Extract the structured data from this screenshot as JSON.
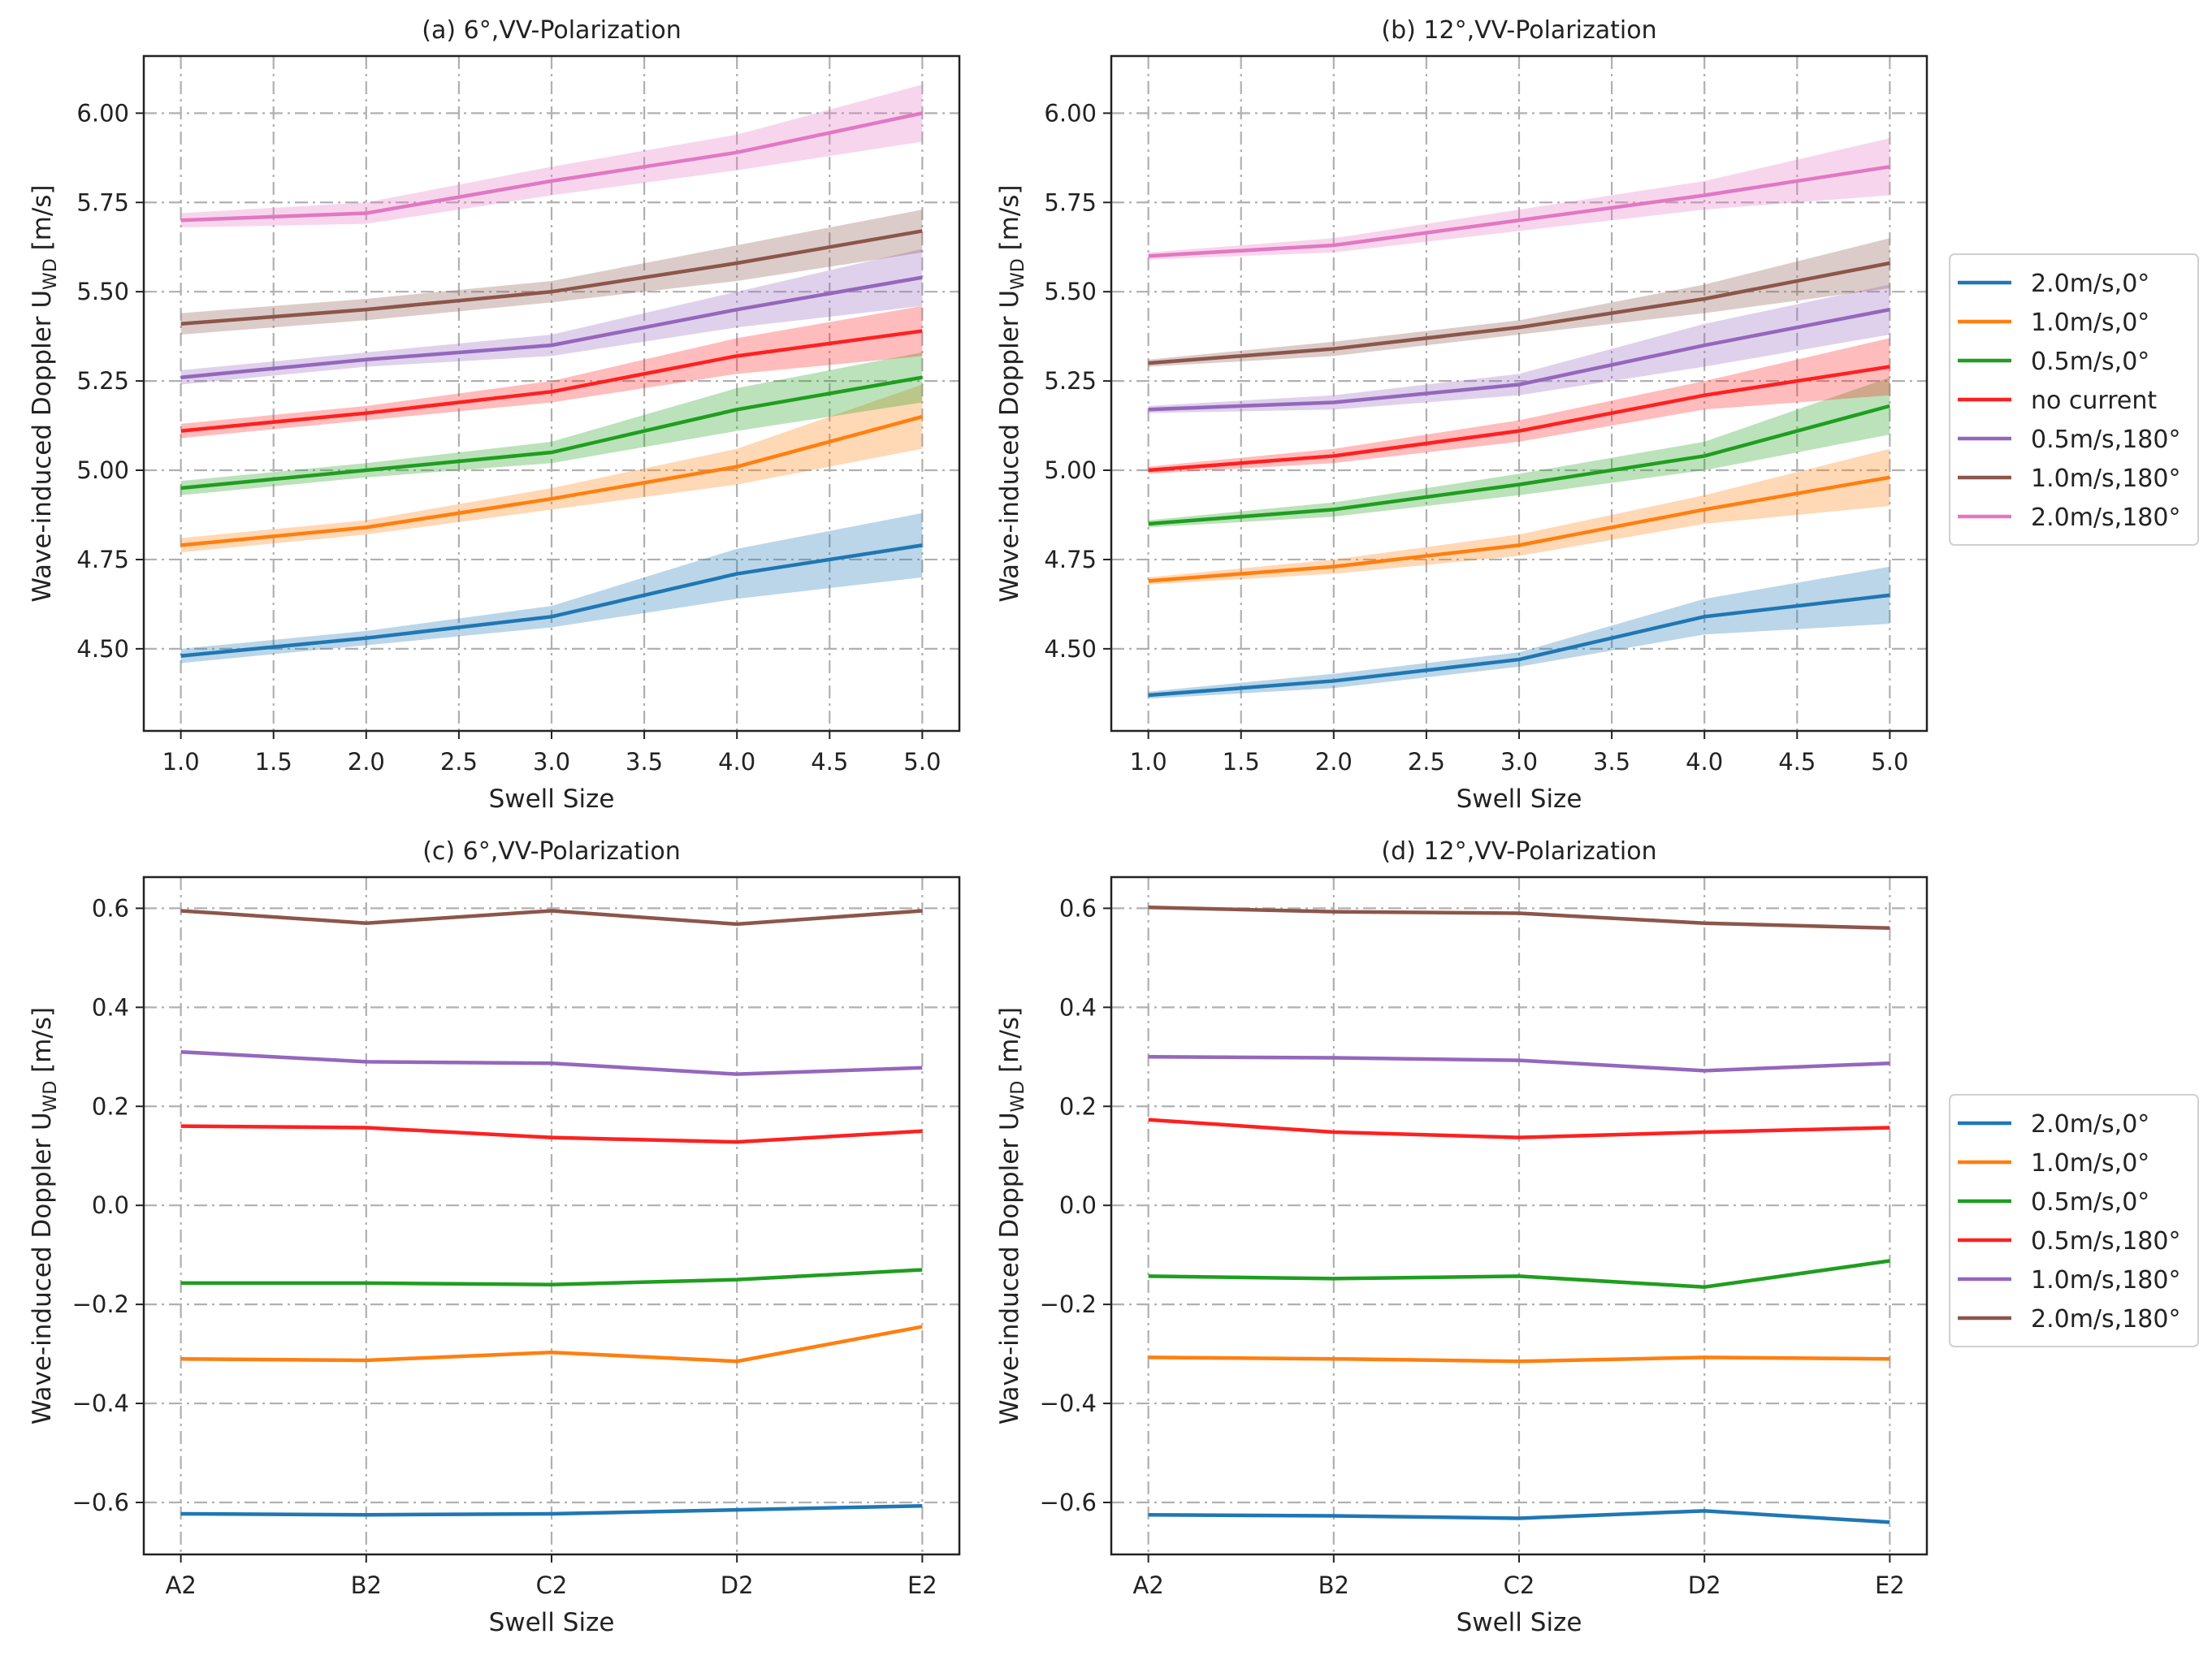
{
  "chart_data": [
    {
      "id": "a",
      "type": "line",
      "title": "(a) 6°,VV-Polarization",
      "xlabel": "Swell Size",
      "ylabel": "Wave-induced Doppler U",
      "ylabel_sub": "WD",
      "ylabel_unit": " [m/s]",
      "x": [
        1.0,
        2.0,
        3.0,
        4.0,
        5.0
      ],
      "xticks": [
        1.0,
        1.5,
        2.0,
        2.5,
        3.0,
        3.5,
        4.0,
        4.5,
        5.0
      ],
      "xtick_labels": [
        "1.0",
        "1.5",
        "2.0",
        "2.5",
        "3.0",
        "3.5",
        "4.0",
        "4.5",
        "5.0"
      ],
      "yticks": [
        4.5,
        4.75,
        5.0,
        5.25,
        5.5,
        5.75,
        6.0
      ],
      "ytick_labels": [
        "4.50",
        "4.75",
        "5.00",
        "5.25",
        "5.50",
        "5.75",
        "6.00"
      ],
      "xlim": [
        0.8,
        5.2
      ],
      "ylim": [
        4.27,
        6.16
      ],
      "grid": true,
      "shaded_band": true,
      "series": [
        {
          "name": "2.0m/s,0°",
          "color": "#1f77b4",
          "values": [
            4.48,
            4.53,
            4.59,
            4.71,
            4.79
          ],
          "band_halfwidth": [
            0.02,
            0.02,
            0.03,
            0.07,
            0.09
          ]
        },
        {
          "name": "1.0m/s,0°",
          "color": "#ff7f0e",
          "values": [
            4.79,
            4.84,
            4.92,
            5.01,
            5.15
          ],
          "band_halfwidth": [
            0.02,
            0.02,
            0.03,
            0.05,
            0.09
          ]
        },
        {
          "name": "0.5m/s,0°",
          "color": "#1f9e1f",
          "values": [
            4.95,
            5.0,
            5.05,
            5.17,
            5.26
          ],
          "band_halfwidth": [
            0.02,
            0.02,
            0.03,
            0.06,
            0.07
          ]
        },
        {
          "name": "no current",
          "color": "#ff2020",
          "values": [
            5.11,
            5.16,
            5.22,
            5.32,
            5.39
          ],
          "band_halfwidth": [
            0.02,
            0.02,
            0.03,
            0.05,
            0.07
          ]
        },
        {
          "name": "0.5m/s,180°",
          "color": "#9467bd",
          "values": [
            5.26,
            5.31,
            5.35,
            5.45,
            5.54
          ],
          "band_halfwidth": [
            0.02,
            0.02,
            0.03,
            0.05,
            0.08
          ]
        },
        {
          "name": "1.0m/s,180°",
          "color": "#8c564b",
          "values": [
            5.41,
            5.45,
            5.5,
            5.58,
            5.67
          ],
          "band_halfwidth": [
            0.03,
            0.03,
            0.03,
            0.05,
            0.06
          ]
        },
        {
          "name": "2.0m/s,180°",
          "color": "#e377c2",
          "values": [
            5.7,
            5.72,
            5.81,
            5.89,
            6.0
          ],
          "band_halfwidth": [
            0.02,
            0.03,
            0.04,
            0.05,
            0.08
          ]
        }
      ]
    },
    {
      "id": "b",
      "type": "line",
      "title": "(b) 12°,VV-Polarization",
      "xlabel": "Swell Size",
      "ylabel": "Wave-induced Doppler U",
      "ylabel_sub": "WD",
      "ylabel_unit": " [m/s]",
      "x": [
        1.0,
        2.0,
        3.0,
        4.0,
        5.0
      ],
      "xticks": [
        1.0,
        1.5,
        2.0,
        2.5,
        3.0,
        3.5,
        4.0,
        4.5,
        5.0
      ],
      "xtick_labels": [
        "1.0",
        "1.5",
        "2.0",
        "2.5",
        "3.0",
        "3.5",
        "4.0",
        "4.5",
        "5.0"
      ],
      "yticks": [
        4.5,
        4.75,
        5.0,
        5.25,
        5.5,
        5.75,
        6.0
      ],
      "ytick_labels": [
        "4.50",
        "4.75",
        "5.00",
        "5.25",
        "5.50",
        "5.75",
        "6.00"
      ],
      "xlim": [
        0.8,
        5.2
      ],
      "ylim": [
        4.27,
        6.16
      ],
      "grid": true,
      "shaded_band": true,
      "legend": {
        "placement": "right-outside",
        "entries": [
          "2.0m/s,0°",
          "1.0m/s,0°",
          "0.5m/s,0°",
          "no current",
          "0.5m/s,180°",
          "1.0m/s,180°",
          "2.0m/s,180°"
        ]
      },
      "series": [
        {
          "name": "2.0m/s,0°",
          "color": "#1f77b4",
          "values": [
            4.37,
            4.41,
            4.47,
            4.59,
            4.65
          ],
          "band_halfwidth": [
            0.01,
            0.02,
            0.02,
            0.05,
            0.08
          ]
        },
        {
          "name": "1.0m/s,0°",
          "color": "#ff7f0e",
          "values": [
            4.69,
            4.73,
            4.79,
            4.89,
            4.98
          ],
          "band_halfwidth": [
            0.01,
            0.02,
            0.03,
            0.04,
            0.08
          ]
        },
        {
          "name": "0.5m/s,0°",
          "color": "#1f9e1f",
          "values": [
            4.85,
            4.89,
            4.96,
            5.04,
            5.18
          ],
          "band_halfwidth": [
            0.01,
            0.02,
            0.03,
            0.04,
            0.08
          ]
        },
        {
          "name": "no current",
          "color": "#ff2020",
          "values": [
            5.0,
            5.04,
            5.11,
            5.21,
            5.29
          ],
          "band_halfwidth": [
            0.01,
            0.02,
            0.03,
            0.04,
            0.08
          ]
        },
        {
          "name": "0.5m/s,180°",
          "color": "#9467bd",
          "values": [
            5.17,
            5.19,
            5.24,
            5.35,
            5.45
          ],
          "band_halfwidth": [
            0.01,
            0.02,
            0.03,
            0.06,
            0.07
          ]
        },
        {
          "name": "1.0m/s,180°",
          "color": "#8c564b",
          "values": [
            5.3,
            5.34,
            5.4,
            5.48,
            5.58
          ],
          "band_halfwidth": [
            0.01,
            0.02,
            0.02,
            0.04,
            0.07
          ]
        },
        {
          "name": "2.0m/s,180°",
          "color": "#e377c2",
          "values": [
            5.6,
            5.63,
            5.7,
            5.77,
            5.85
          ],
          "band_halfwidth": [
            0.01,
            0.02,
            0.03,
            0.04,
            0.08
          ]
        }
      ]
    },
    {
      "id": "c",
      "type": "line",
      "title": "(c) 6°,VV-Polarization",
      "xlabel": "Swell Size",
      "ylabel": "Wave-induced Doppler U",
      "ylabel_sub": "WD",
      "ylabel_unit": " [m/s]",
      "categories": [
        "A2",
        "B2",
        "C2",
        "D2",
        "E2"
      ],
      "yticks": [
        -0.6,
        -0.4,
        -0.2,
        0.0,
        0.2,
        0.4,
        0.6
      ],
      "ytick_labels": [
        "−0.6",
        "−0.4",
        "−0.2",
        "0.0",
        "0.2",
        "0.4",
        "0.6"
      ],
      "ylim": [
        -0.705,
        0.663
      ],
      "grid": true,
      "series": [
        {
          "name": "2.0m/s,0°",
          "color": "#1f77b4",
          "values": [
            -0.623,
            -0.625,
            -0.623,
            -0.615,
            -0.607
          ]
        },
        {
          "name": "1.0m/s,0°",
          "color": "#ff7f0e",
          "values": [
            -0.31,
            -0.313,
            -0.297,
            -0.315,
            -0.245
          ]
        },
        {
          "name": "0.5m/s,0°",
          "color": "#1f9e1f",
          "values": [
            -0.157,
            -0.157,
            -0.16,
            -0.15,
            -0.13
          ]
        },
        {
          "name": "0.5m/s,180°",
          "color": "#ff2020",
          "values": [
            0.16,
            0.157,
            0.137,
            0.128,
            0.15
          ]
        },
        {
          "name": "1.0m/s,180°",
          "color": "#9467bd",
          "values": [
            0.31,
            0.29,
            0.287,
            0.265,
            0.278
          ]
        },
        {
          "name": "2.0m/s,180°",
          "color": "#8c564b",
          "values": [
            0.595,
            0.57,
            0.595,
            0.568,
            0.595
          ]
        }
      ]
    },
    {
      "id": "d",
      "type": "line",
      "title": "(d) 12°,VV-Polarization",
      "xlabel": "Swell Size",
      "ylabel": "Wave-induced Doppler U",
      "ylabel_sub": "WD",
      "ylabel_unit": " [m/s]",
      "categories": [
        "A2",
        "B2",
        "C2",
        "D2",
        "E2"
      ],
      "yticks": [
        -0.6,
        -0.4,
        -0.2,
        0.0,
        0.2,
        0.4,
        0.6
      ],
      "ytick_labels": [
        "−0.6",
        "−0.4",
        "−0.2",
        "0.0",
        "0.2",
        "0.4",
        "0.6"
      ],
      "ylim": [
        -0.705,
        0.663
      ],
      "grid": true,
      "legend": {
        "placement": "right-outside",
        "entries": [
          "2.0m/s,0°",
          "1.0m/s,0°",
          "0.5m/s,0°",
          "0.5m/s,180°",
          "1.0m/s,180°",
          "2.0m/s,180°"
        ]
      },
      "series": [
        {
          "name": "2.0m/s,0°",
          "color": "#1f77b4",
          "values": [
            -0.625,
            -0.627,
            -0.632,
            -0.617,
            -0.64
          ]
        },
        {
          "name": "1.0m/s,0°",
          "color": "#ff7f0e",
          "values": [
            -0.307,
            -0.31,
            -0.315,
            -0.307,
            -0.31
          ]
        },
        {
          "name": "0.5m/s,0°",
          "color": "#1f9e1f",
          "values": [
            -0.143,
            -0.148,
            -0.143,
            -0.165,
            -0.112
          ]
        },
        {
          "name": "0.5m/s,180°",
          "color": "#ff2020",
          "values": [
            0.173,
            0.148,
            0.137,
            0.148,
            0.157
          ]
        },
        {
          "name": "1.0m/s,180°",
          "color": "#9467bd",
          "values": [
            0.3,
            0.298,
            0.293,
            0.272,
            0.287
          ]
        },
        {
          "name": "2.0m/s,180°",
          "color": "#8c564b",
          "values": [
            0.602,
            0.593,
            0.59,
            0.57,
            0.56
          ]
        }
      ]
    }
  ]
}
